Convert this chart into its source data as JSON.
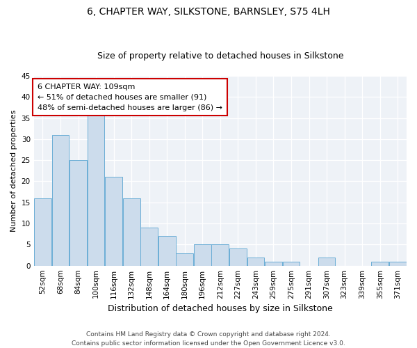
{
  "title": "6, CHAPTER WAY, SILKSTONE, BARNSLEY, S75 4LH",
  "subtitle": "Size of property relative to detached houses in Silkstone",
  "xlabel": "Distribution of detached houses by size in Silkstone",
  "ylabel": "Number of detached properties",
  "categories": [
    "52sqm",
    "68sqm",
    "84sqm",
    "100sqm",
    "116sqm",
    "132sqm",
    "148sqm",
    "164sqm",
    "180sqm",
    "196sqm",
    "212sqm",
    "227sqm",
    "243sqm",
    "259sqm",
    "275sqm",
    "291sqm",
    "307sqm",
    "323sqm",
    "339sqm",
    "355sqm",
    "371sqm"
  ],
  "values": [
    16,
    31,
    25,
    36,
    21,
    16,
    9,
    7,
    3,
    5,
    5,
    4,
    2,
    1,
    1,
    0,
    2,
    0,
    0,
    1,
    1
  ],
  "bar_color": "#ccdcec",
  "bar_edge_color": "#6baed6",
  "subject_label": "6 CHAPTER WAY: 109sqm",
  "annotation_line1": "← 51% of detached houses are smaller (91)",
  "annotation_line2": "48% of semi-detached houses are larger (86) →",
  "annotation_box_color": "#ffffff",
  "annotation_box_edge": "#cc0000",
  "ylim": [
    0,
    45
  ],
  "yticks": [
    0,
    5,
    10,
    15,
    20,
    25,
    30,
    35,
    40,
    45
  ],
  "background_color": "#eef2f7",
  "footer_line1": "Contains HM Land Registry data © Crown copyright and database right 2024.",
  "footer_line2": "Contains public sector information licensed under the Open Government Licence v3.0.",
  "title_fontsize": 10,
  "subtitle_fontsize": 9,
  "annotation_fontsize": 8,
  "ylabel_fontsize": 8,
  "xlabel_fontsize": 9,
  "tick_fontsize": 7.5,
  "footer_fontsize": 6.5
}
